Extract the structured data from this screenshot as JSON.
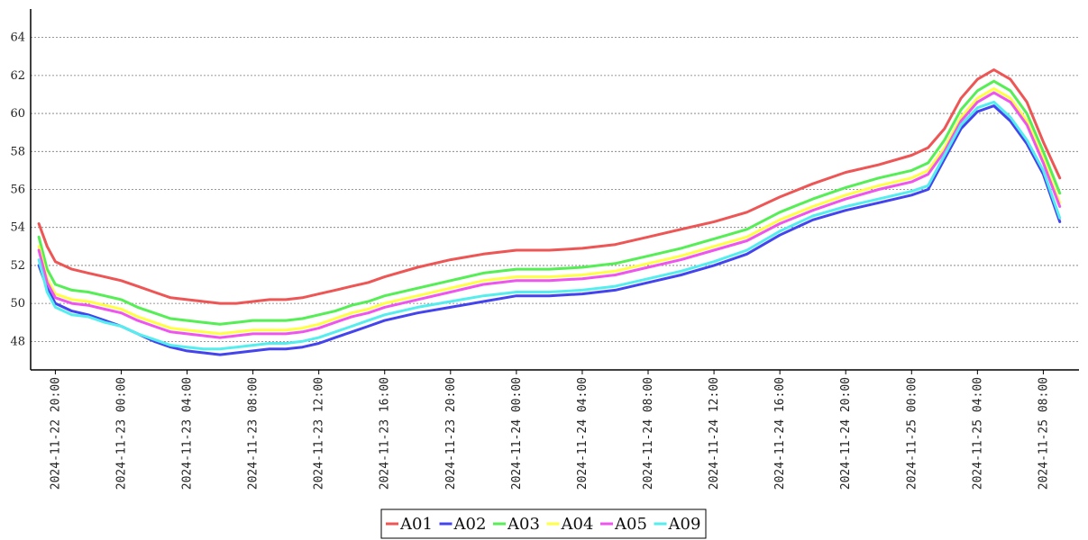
{
  "chart_data": {
    "type": "line",
    "title": "",
    "xlabel": "",
    "ylabel": "",
    "xlim": [
      "2024-11-22 18:30",
      "2024-11-25 10:10"
    ],
    "ylim": [
      46.5,
      65.5
    ],
    "yticks": [
      48,
      50,
      52,
      54,
      56,
      58,
      60,
      62,
      64
    ],
    "xticks": [
      "2024-11-22 20:00",
      "2024-11-23 00:00",
      "2024-11-23 04:00",
      "2024-11-23 08:00",
      "2024-11-23 12:00",
      "2024-11-23 16:00",
      "2024-11-23 20:00",
      "2024-11-24 00:00",
      "2024-11-24 04:00",
      "2024-11-24 08:00",
      "2024-11-24 12:00",
      "2024-11-24 16:00",
      "2024-11-24 20:00",
      "2024-11-25 00:00",
      "2024-11-25 04:00",
      "2024-11-25 08:00"
    ],
    "grid": "horizontal-dashed",
    "legend_position": "bottom-center",
    "x": [
      "2024-11-22 19:00",
      "2024-11-22 19:30",
      "2024-11-22 20:00",
      "2024-11-22 21:00",
      "2024-11-22 22:00",
      "2024-11-22 23:00",
      "2024-11-23 00:00",
      "2024-11-23 01:00",
      "2024-11-23 02:00",
      "2024-11-23 03:00",
      "2024-11-23 04:00",
      "2024-11-23 05:00",
      "2024-11-23 06:00",
      "2024-11-23 07:00",
      "2024-11-23 08:00",
      "2024-11-23 09:00",
      "2024-11-23 10:00",
      "2024-11-23 11:00",
      "2024-11-23 12:00",
      "2024-11-23 13:00",
      "2024-11-23 14:00",
      "2024-11-23 15:00",
      "2024-11-23 16:00",
      "2024-11-23 18:00",
      "2024-11-23 20:00",
      "2024-11-23 22:00",
      "2024-11-24 00:00",
      "2024-11-24 02:00",
      "2024-11-24 04:00",
      "2024-11-24 06:00",
      "2024-11-24 08:00",
      "2024-11-24 10:00",
      "2024-11-24 12:00",
      "2024-11-24 14:00",
      "2024-11-24 16:00",
      "2024-11-24 18:00",
      "2024-11-24 20:00",
      "2024-11-24 22:00",
      "2024-11-25 00:00",
      "2024-11-25 01:00",
      "2024-11-25 02:00",
      "2024-11-25 03:00",
      "2024-11-25 04:00",
      "2024-11-25 05:00",
      "2024-11-25 06:00",
      "2024-11-25 07:00",
      "2024-11-25 08:00",
      "2024-11-25 09:00"
    ],
    "series": [
      {
        "name": "A01",
        "color": "#ee5555",
        "values": [
          54.2,
          53.0,
          52.2,
          51.8,
          51.6,
          51.4,
          51.2,
          50.9,
          50.6,
          50.3,
          50.2,
          50.1,
          50.0,
          50.0,
          50.1,
          50.2,
          50.2,
          50.3,
          50.5,
          50.7,
          50.9,
          51.1,
          51.4,
          51.9,
          52.3,
          52.6,
          52.8,
          52.8,
          52.9,
          53.1,
          53.5,
          53.9,
          54.3,
          54.8,
          55.6,
          56.3,
          56.9,
          57.3,
          57.8,
          58.2,
          59.2,
          60.8,
          61.8,
          62.3,
          61.8,
          60.6,
          58.5,
          56.6
        ]
      },
      {
        "name": "A02",
        "color": "#4444ee",
        "values": [
          52.0,
          50.8,
          50.0,
          49.6,
          49.4,
          49.1,
          48.8,
          48.4,
          48.0,
          47.7,
          47.5,
          47.4,
          47.3,
          47.4,
          47.5,
          47.6,
          47.6,
          47.7,
          47.9,
          48.2,
          48.5,
          48.8,
          49.1,
          49.5,
          49.8,
          50.1,
          50.4,
          50.4,
          50.5,
          50.7,
          51.1,
          51.5,
          52.0,
          52.6,
          53.6,
          54.4,
          54.9,
          55.3,
          55.7,
          56.0,
          57.6,
          59.2,
          60.1,
          60.4,
          59.6,
          58.4,
          56.8,
          54.3
        ]
      },
      {
        "name": "A03",
        "color": "#55ee55",
        "values": [
          53.5,
          51.8,
          51.0,
          50.7,
          50.6,
          50.4,
          50.2,
          49.8,
          49.5,
          49.2,
          49.1,
          49.0,
          48.9,
          49.0,
          49.1,
          49.1,
          49.1,
          49.2,
          49.4,
          49.6,
          49.9,
          50.1,
          50.4,
          50.8,
          51.2,
          51.6,
          51.8,
          51.8,
          51.9,
          52.1,
          52.5,
          52.9,
          53.4,
          53.9,
          54.8,
          55.5,
          56.1,
          56.6,
          57.0,
          57.4,
          58.6,
          60.2,
          61.2,
          61.7,
          61.2,
          60.0,
          58.0,
          55.8
        ]
      },
      {
        "name": "A04",
        "color": "#ffff44",
        "values": [
          53.0,
          51.3,
          50.5,
          50.2,
          50.1,
          49.9,
          49.7,
          49.3,
          49.0,
          48.7,
          48.6,
          48.5,
          48.4,
          48.5,
          48.6,
          48.6,
          48.6,
          48.7,
          48.9,
          49.2,
          49.5,
          49.7,
          50.0,
          50.4,
          50.8,
          51.2,
          51.4,
          51.4,
          51.5,
          51.7,
          52.1,
          52.5,
          53.0,
          53.5,
          54.4,
          55.1,
          55.7,
          56.2,
          56.6,
          57.0,
          58.2,
          59.8,
          60.8,
          61.3,
          60.8,
          59.6,
          57.6,
          55.3
        ]
      },
      {
        "name": "A05",
        "color": "#ee55ee",
        "values": [
          52.8,
          51.1,
          50.3,
          50.0,
          49.9,
          49.7,
          49.5,
          49.1,
          48.8,
          48.5,
          48.4,
          48.3,
          48.2,
          48.3,
          48.4,
          48.4,
          48.4,
          48.5,
          48.7,
          49.0,
          49.3,
          49.5,
          49.8,
          50.2,
          50.6,
          51.0,
          51.2,
          51.2,
          51.3,
          51.5,
          51.9,
          52.3,
          52.8,
          53.3,
          54.2,
          54.9,
          55.5,
          56.0,
          56.4,
          56.8,
          58.0,
          59.6,
          60.6,
          61.1,
          60.6,
          59.4,
          57.4,
          55.1
        ]
      },
      {
        "name": "A09",
        "color": "#55eeee",
        "values": [
          52.3,
          50.6,
          49.8,
          49.4,
          49.3,
          49.0,
          48.8,
          48.4,
          48.1,
          47.8,
          47.7,
          47.6,
          47.6,
          47.7,
          47.8,
          47.9,
          47.9,
          48.0,
          48.2,
          48.5,
          48.8,
          49.1,
          49.4,
          49.8,
          50.1,
          50.4,
          50.6,
          50.6,
          50.7,
          50.9,
          51.3,
          51.7,
          52.2,
          52.8,
          53.8,
          54.6,
          55.1,
          55.5,
          55.9,
          56.2,
          57.8,
          59.4,
          60.3,
          60.6,
          59.8,
          58.6,
          57.0,
          54.5
        ]
      }
    ]
  }
}
